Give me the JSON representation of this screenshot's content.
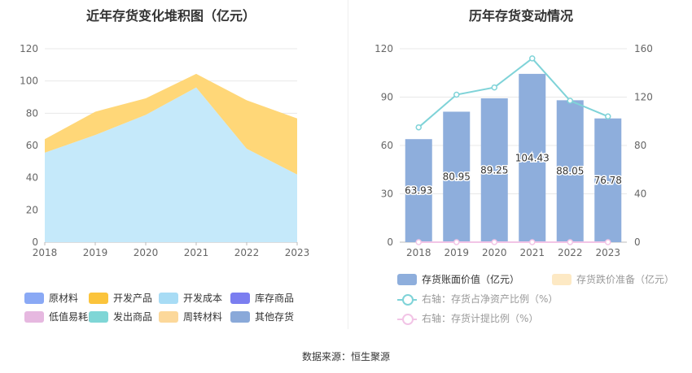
{
  "left_title": "近年存货变化堆积图（亿元）",
  "right_title": "历年存货变动情况",
  "source": "数据来源：恒生聚源",
  "chart_data": [
    {
      "type": "area",
      "stacked": true,
      "title": "近年存货变化堆积图（亿元）",
      "x": [
        "2018",
        "2019",
        "2020",
        "2021",
        "2022",
        "2023"
      ],
      "ylim": [
        0,
        120
      ],
      "yticks": [
        "0",
        "20",
        "40",
        "60",
        "80",
        "100",
        "120"
      ],
      "grid": true,
      "legend_position": "bottom",
      "legend": [
        {
          "name": "原材料",
          "color": "#8aa9f5"
        },
        {
          "name": "开发产品",
          "color": "#fbc43c"
        },
        {
          "name": "开发成本",
          "color": "#a8dcf5"
        },
        {
          "name": "库存商品",
          "color": "#7b7ef0"
        },
        {
          "name": "低值易耗品",
          "color": "#e6b8e0"
        },
        {
          "name": "发出商品",
          "color": "#7fd6d6"
        },
        {
          "name": "周转材料",
          "color": "#fcd89a"
        },
        {
          "name": "其他存货",
          "color": "#8aa9d9"
        }
      ],
      "series": [
        {
          "name": "开发成本",
          "color": "#c5e9fa",
          "values": [
            55.5,
            66.5,
            79,
            96,
            58,
            42
          ]
        },
        {
          "name": "开发产品",
          "color": "#ffd778",
          "values": [
            8.43,
            14.45,
            10.25,
            8.43,
            30.05,
            34.78
          ]
        }
      ]
    },
    {
      "type": "bar",
      "title": "历年存货变动情况",
      "categories": [
        "2018",
        "2019",
        "2020",
        "2021",
        "2022",
        "2023"
      ],
      "ylim": [
        0,
        120
      ],
      "yticks": [
        "0",
        "30",
        "60",
        "90",
        "120"
      ],
      "y2lim": [
        0,
        160
      ],
      "y2ticks": [
        "0",
        "40",
        "80",
        "120",
        "160"
      ],
      "grid": true,
      "legend_position": "bottom",
      "series": [
        {
          "name": "存货账面价值（亿元）",
          "type": "bar",
          "axis": "left",
          "color": "#8eaedc",
          "values": [
            63.93,
            80.95,
            89.25,
            104.43,
            88.05,
            76.78
          ],
          "labels": [
            "63.93",
            "80.95",
            "89.25",
            "104.43",
            "88.05",
            "76.78"
          ]
        },
        {
          "name": "存货跌价准备（亿元）",
          "type": "bar",
          "axis": "left",
          "color": "#fde9c4",
          "values": [
            0,
            0,
            0,
            0,
            0,
            0
          ]
        },
        {
          "name": "右轴：存货占净资产比例（%）",
          "type": "line",
          "axis": "right",
          "color": "#7fd3d8",
          "values": [
            95,
            122,
            128,
            152,
            117,
            104
          ]
        },
        {
          "name": "右轴：存货计提比例（%）",
          "type": "line",
          "axis": "right",
          "color": "#f2c4e6",
          "values": [
            0,
            0,
            0,
            0,
            0,
            0
          ]
        }
      ]
    }
  ]
}
